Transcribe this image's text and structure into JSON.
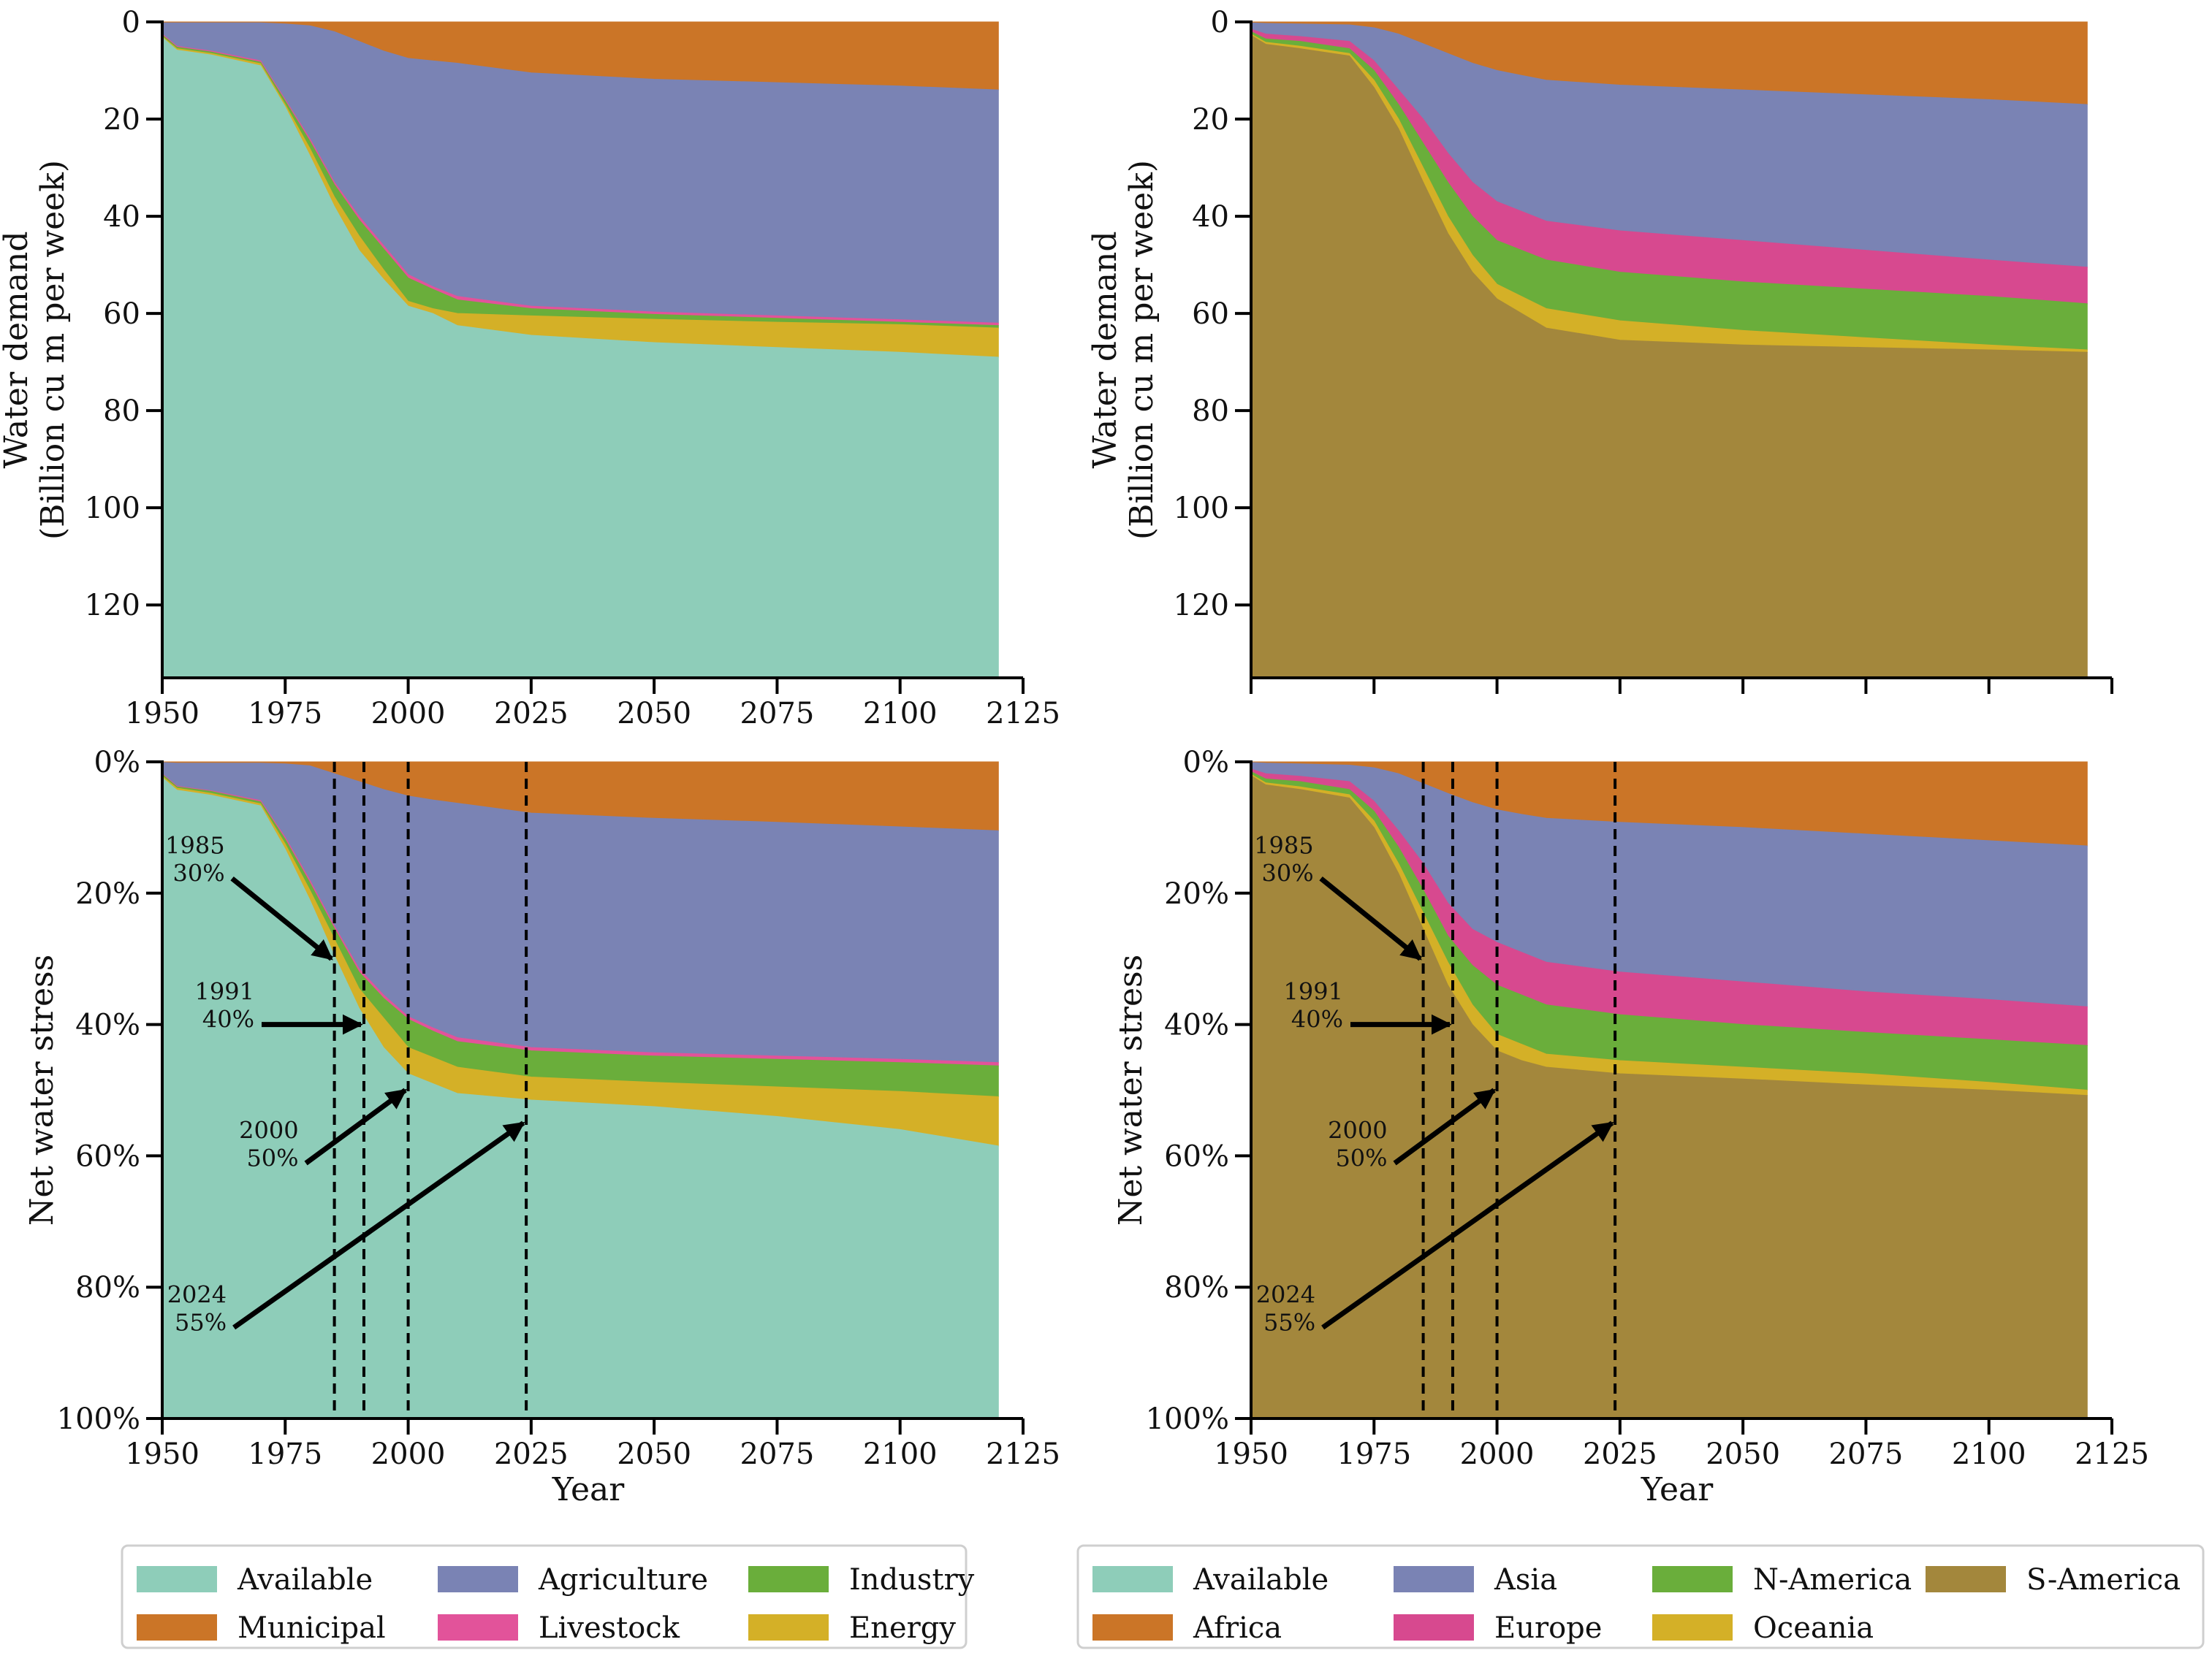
{
  "colors": {
    "Available": "#8ecdb9",
    "Municipal": "#cb7527",
    "Agriculture": "#7a83b4",
    "Livestock": "#e2539a",
    "Industry": "#6aae3b",
    "Energy": "#d4b027",
    "Africa": "#cb7527",
    "Asia": "#7a83b4",
    "Europe": "#d7498f",
    "N-America": "#6aae3b",
    "Oceania": "#d4b027",
    "S-America": "#a3873c"
  },
  "chart_data": [
    {
      "id": "top-left",
      "type": "area",
      "stacking": "cumulative boundaries from top (0) downward",
      "xlim": [
        1950,
        2125
      ],
      "ylim": [
        0,
        135
      ],
      "y_inverted": true,
      "xticks": [
        1950,
        1975,
        2000,
        2025,
        2050,
        2075,
        2100,
        2125
      ],
      "show_xtick_labels": true,
      "yticks": [
        0,
        20,
        40,
        60,
        80,
        100,
        120
      ],
      "yticklabels": [
        "0",
        "20",
        "40",
        "60",
        "80",
        "100",
        "120"
      ],
      "ylabel": [
        "Water demand",
        "(Billion cu m per week)"
      ],
      "xlabel": "",
      "x": [
        1950,
        1953,
        1960,
        1970,
        1975,
        1980,
        1985,
        1990,
        1995,
        2000,
        2005,
        2010,
        2025,
        2050,
        2075,
        2100,
        2120
      ],
      "series": [
        {
          "name": "Municipal",
          "bottom": [
            0.2,
            0.2,
            0.2,
            0.2,
            0.4,
            0.8,
            2,
            4,
            6,
            7.5,
            8,
            8.5,
            10.5,
            11.8,
            12.5,
            13.2,
            14
          ]
        },
        {
          "name": "Agriculture",
          "bottom": [
            2.5,
            5,
            6,
            8,
            16,
            24,
            33,
            40,
            46,
            52,
            54.5,
            56.5,
            58.5,
            59.7,
            60.5,
            61.3,
            62
          ]
        },
        {
          "name": "Livestock",
          "bottom": [
            2.7,
            5.2,
            6.2,
            8.3,
            16.3,
            24.5,
            33.5,
            40.7,
            46.7,
            52.7,
            55,
            57.2,
            59,
            60.2,
            61,
            61.8,
            62.5
          ]
        },
        {
          "name": "Industry",
          "bottom": [
            3,
            5.5,
            6.5,
            8.6,
            17,
            26,
            36,
            44,
            51,
            57.5,
            59,
            60,
            60.5,
            61.2,
            61.8,
            62.3,
            63
          ]
        },
        {
          "name": "Energy",
          "bottom": [
            3.2,
            5.8,
            6.8,
            9,
            17.5,
            27.5,
            38,
            47,
            53,
            58.5,
            60,
            62.5,
            64.5,
            66,
            67,
            68,
            69
          ]
        },
        {
          "name": "Available",
          "bottom": [
            3.5,
            6,
            7,
            9.5,
            18,
            29,
            41,
            51,
            59,
            66.5,
            68.5,
            71,
            74.5,
            75.8,
            76.5,
            77.5,
            78.5
          ]
        }
      ]
    },
    {
      "id": "top-right",
      "type": "area",
      "stacking": "cumulative boundaries from top (0) downward",
      "xlim": [
        1950,
        2125
      ],
      "ylim": [
        0,
        135
      ],
      "y_inverted": true,
      "xticks": [
        1950,
        1975,
        2000,
        2025,
        2050,
        2075,
        2100,
        2125
      ],
      "show_xtick_labels": false,
      "yticks": [
        0,
        20,
        40,
        60,
        80,
        100,
        120
      ],
      "yticklabels": [
        "0",
        "20",
        "40",
        "60",
        "80",
        "100",
        "120"
      ],
      "ylabel": [
        "Water demand",
        "(Billion cu m per week)"
      ],
      "xlabel": "",
      "x": [
        1950,
        1953,
        1960,
        1970,
        1975,
        1980,
        1985,
        1990,
        1995,
        2000,
        2005,
        2010,
        2025,
        2050,
        2075,
        2100,
        2120
      ],
      "series": [
        {
          "name": "Africa",
          "bottom": [
            0.2,
            0.3,
            0.4,
            0.6,
            1.2,
            2.5,
            4.5,
            6.5,
            8.5,
            10,
            11,
            12,
            13,
            14,
            15,
            16,
            17
          ]
        },
        {
          "name": "Asia",
          "bottom": [
            1.5,
            2.5,
            3,
            4,
            8,
            14,
            20,
            27,
            33,
            37,
            39,
            41,
            43,
            45,
            47,
            49,
            50.5
          ]
        },
        {
          "name": "Europe",
          "bottom": [
            2,
            3.5,
            4,
            5.5,
            10,
            17,
            25,
            33,
            40,
            45,
            47,
            49,
            51.5,
            53.5,
            55,
            56.5,
            58
          ]
        },
        {
          "name": "N-America",
          "bottom": [
            2.5,
            4.2,
            5,
            6.5,
            12,
            20,
            30,
            40,
            48,
            54,
            56.5,
            59,
            61.5,
            63.5,
            65,
            66.5,
            67.5
          ]
        },
        {
          "name": "Oceania",
          "bottom": [
            2.8,
            4.6,
            5.5,
            7,
            13.5,
            22,
            33,
            43.5,
            51.5,
            57,
            60,
            63,
            65.5,
            66.5,
            67,
            67.5,
            68
          ]
        },
        {
          "name": "S-America",
          "bottom": [
            3.5,
            6,
            7,
            9.5,
            18,
            29,
            41,
            51,
            59,
            66.5,
            68.5,
            71,
            74.5,
            75.8,
            76.5,
            77.5,
            78.5
          ]
        }
      ]
    },
    {
      "id": "bottom-left",
      "type": "area",
      "stacking": "cumulative boundaries from top (0%) downward",
      "xlim": [
        1950,
        2125
      ],
      "ylim": [
        0,
        100
      ],
      "y_inverted": true,
      "xticks": [
        1950,
        1975,
        2000,
        2025,
        2050,
        2075,
        2100,
        2125
      ],
      "show_xtick_labels": true,
      "yticks": [
        0,
        20,
        40,
        60,
        80,
        100
      ],
      "yticklabels": [
        "0%",
        "20%",
        "40%",
        "60%",
        "80%",
        "100%"
      ],
      "ylabel": [
        "Net water stress"
      ],
      "xlabel": "Year",
      "x": [
        1950,
        1953,
        1960,
        1970,
        1975,
        1980,
        1985,
        1990,
        1995,
        2000,
        2005,
        2010,
        2025,
        2050,
        2075,
        2100,
        2120
      ],
      "series": [
        {
          "name": "Municipal",
          "bottom": [
            0.1,
            0.2,
            0.2,
            0.2,
            0.3,
            0.6,
            1.8,
            3,
            4.2,
            5.2,
            5.8,
            6.3,
            7.8,
            8.6,
            9.2,
            9.9,
            10.5
          ]
        },
        {
          "name": "Agriculture",
          "bottom": [
            1.8,
            3.7,
            4.4,
            5.9,
            11.5,
            18,
            25,
            31.5,
            35.5,
            38.8,
            40.5,
            42,
            43.5,
            44.3,
            44.8,
            45.3,
            45.8
          ]
        },
        {
          "name": "Livestock",
          "bottom": [
            1.9,
            3.8,
            4.5,
            6.1,
            11.8,
            18.4,
            25.4,
            32,
            36,
            39.2,
            41,
            42.6,
            44,
            44.8,
            45.3,
            45.8,
            46.3
          ]
        },
        {
          "name": "Industry",
          "bottom": [
            2.2,
            4,
            4.8,
            6.4,
            12.5,
            19.5,
            27,
            34.5,
            39,
            43.5,
            45,
            46.5,
            48,
            48.8,
            49.5,
            50.2,
            51
          ]
        },
        {
          "name": "Energy",
          "bottom": [
            2.4,
            4.3,
            5.1,
            6.7,
            13.3,
            21,
            29.5,
            37.5,
            43.5,
            47.5,
            49,
            50.5,
            51.5,
            52.5,
            54,
            56,
            58.5
          ]
        },
        {
          "name": "Available",
          "bottom": [
            2.6,
            4.5,
            5.3,
            7,
            13.8,
            22,
            30.5,
            40.5,
            46,
            50.5,
            51.5,
            52.5,
            54.5,
            55.8,
            56.5,
            57.3,
            58.5
          ]
        }
      ],
      "vlines": [
        1985,
        1991,
        2000,
        2024
      ],
      "annotations": [
        {
          "year": "1985",
          "value": "30%",
          "x": 1985,
          "y": 30
        },
        {
          "year": "1991",
          "value": "40%",
          "x": 1991,
          "y": 40
        },
        {
          "year": "2000",
          "value": "50%",
          "x": 2000,
          "y": 50
        },
        {
          "year": "2024",
          "value": "55%",
          "x": 2024,
          "y": 55
        }
      ]
    },
    {
      "id": "bottom-right",
      "type": "area",
      "stacking": "cumulative boundaries from top (0%) downward",
      "xlim": [
        1950,
        2125
      ],
      "ylim": [
        0,
        100
      ],
      "y_inverted": true,
      "xticks": [
        1950,
        1975,
        2000,
        2025,
        2050,
        2075,
        2100,
        2125
      ],
      "show_xtick_labels": true,
      "yticks": [
        0,
        20,
        40,
        60,
        80,
        100
      ],
      "yticklabels": [
        "0%",
        "20%",
        "40%",
        "60%",
        "80%",
        "100%"
      ],
      "ylabel": [
        "Net water stress"
      ],
      "xlabel": "Year",
      "x": [
        1950,
        1953,
        1960,
        1970,
        1975,
        1980,
        1985,
        1990,
        1995,
        2000,
        2005,
        2010,
        2025,
        2050,
        2075,
        2100,
        2120
      ],
      "series": [
        {
          "name": "Africa",
          "bottom": [
            0.1,
            0.2,
            0.3,
            0.5,
            0.9,
            1.8,
            3.3,
            4.8,
            6.2,
            7.3,
            8,
            8.6,
            9.2,
            10,
            11,
            12,
            12.8
          ]
        },
        {
          "name": "Asia",
          "bottom": [
            1.1,
            1.8,
            2.2,
            3,
            6,
            10.5,
            15.5,
            21.5,
            25.5,
            27.5,
            29,
            30.5,
            32,
            33.5,
            35,
            36.2,
            37.3
          ]
        },
        {
          "name": "Europe",
          "bottom": [
            1.5,
            2.6,
            3,
            4.2,
            7.5,
            13,
            19.5,
            26.5,
            31,
            34,
            35.5,
            37,
            38.5,
            40,
            41.2,
            42.3,
            43.2
          ]
        },
        {
          "name": "N-America",
          "bottom": [
            1.9,
            3.2,
            3.8,
            5,
            9,
            15.5,
            23,
            30.5,
            37,
            41.5,
            43,
            44.5,
            45.5,
            46.5,
            47.5,
            48.8,
            50
          ]
        },
        {
          "name": "Oceania",
          "bottom": [
            2.1,
            3.5,
            4.2,
            5.5,
            10,
            17,
            25.5,
            34,
            40,
            44,
            45.5,
            46.5,
            47.5,
            48.3,
            49.2,
            50,
            50.8
          ]
        },
        {
          "name": "S-America",
          "bottom": [
            2.6,
            4.5,
            5.3,
            7,
            13.8,
            22,
            30.5,
            40.5,
            46,
            50.5,
            51.5,
            52.5,
            54.5,
            55.8,
            56.5,
            57.3,
            58.5
          ]
        }
      ],
      "vlines": [
        1985,
        1991,
        2000,
        2024
      ],
      "annotations": [
        {
          "year": "1985",
          "value": "30%",
          "x": 1985,
          "y": 30
        },
        {
          "year": "1991",
          "value": "40%",
          "x": 1991,
          "y": 40
        },
        {
          "year": "2000",
          "value": "50%",
          "x": 2000,
          "y": 50
        },
        {
          "year": "2024",
          "value": "55%",
          "x": 2024,
          "y": 55
        }
      ]
    }
  ],
  "legends": [
    {
      "id": "sector",
      "columns": [
        [
          "Available",
          "Municipal"
        ],
        [
          "Agriculture",
          "Livestock"
        ],
        [
          "Industry",
          "Energy"
        ]
      ]
    },
    {
      "id": "region",
      "columns": [
        [
          "Available",
          "Africa"
        ],
        [
          "Asia",
          "Europe"
        ],
        [
          "N-America",
          "Oceania"
        ],
        [
          "S-America"
        ]
      ]
    }
  ]
}
